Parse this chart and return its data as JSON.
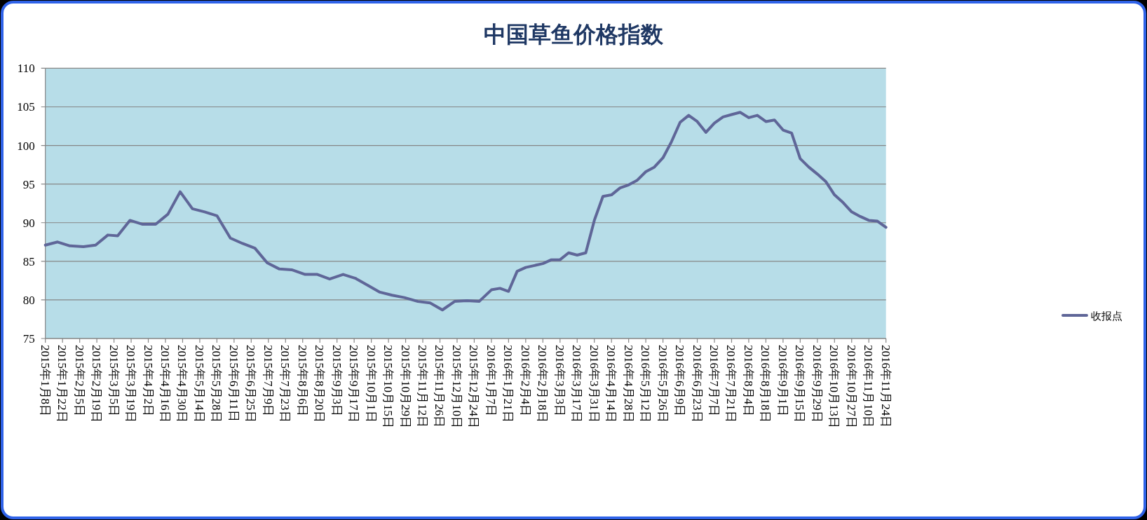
{
  "chart_data": {
    "type": "line",
    "title": "中国草鱼价格指数",
    "x": [
      "2015-01-08",
      "2015-01-18",
      "2015-01-28",
      "2015-02-08",
      "2015-02-18",
      "2015-02-28",
      "2015-03-08",
      "2015-03-18",
      "2015-03-28",
      "2015-04-08",
      "2015-04-18",
      "2015-04-28",
      "2015-05-08",
      "2015-05-18",
      "2015-05-28",
      "2015-06-08",
      "2015-06-18",
      "2015-06-28",
      "2015-07-08",
      "2015-07-18",
      "2015-07-28",
      "2015-08-08",
      "2015-08-18",
      "2015-08-28",
      "2015-09-08",
      "2015-09-18",
      "2015-09-28",
      "2015-10-08",
      "2015-10-18",
      "2015-10-28",
      "2015-11-08",
      "2015-11-18",
      "2015-11-28",
      "2015-12-08",
      "2015-12-18",
      "2015-12-28",
      "2016-01-07",
      "2016-01-14",
      "2016-01-21",
      "2016-01-28",
      "2016-02-04",
      "2016-02-18",
      "2016-02-25",
      "2016-03-03",
      "2016-03-10",
      "2016-03-17",
      "2016-03-24",
      "2016-03-31",
      "2016-04-07",
      "2016-04-14",
      "2016-04-21",
      "2016-04-28",
      "2016-05-05",
      "2016-05-12",
      "2016-05-19",
      "2016-05-26",
      "2016-06-02",
      "2016-06-09",
      "2016-06-16",
      "2016-06-23",
      "2016-06-30",
      "2016-07-07",
      "2016-07-14",
      "2016-07-21",
      "2016-07-28",
      "2016-08-04",
      "2016-08-11",
      "2016-08-18",
      "2016-08-25",
      "2016-09-01",
      "2016-09-08",
      "2016-09-15",
      "2016-09-22",
      "2016-09-29",
      "2016-10-06",
      "2016-10-13",
      "2016-10-20",
      "2016-10-27",
      "2016-11-03",
      "2016-11-10",
      "2016-11-17",
      "2016-11-24"
    ],
    "series": [
      {
        "name": "收报点",
        "color": "#5f6698",
        "values": [
          87.1,
          87.5,
          87.0,
          86.9,
          87.1,
          88.4,
          88.3,
          90.3,
          89.8,
          89.8,
          91.1,
          94.0,
          91.8,
          91.4,
          90.9,
          88.0,
          87.3,
          86.7,
          84.8,
          84.0,
          83.9,
          83.3,
          83.3,
          82.7,
          83.3,
          82.8,
          81.9,
          81.0,
          80.6,
          80.3,
          79.8,
          79.6,
          78.7,
          79.8,
          79.9,
          79.8,
          81.3,
          81.5,
          81.1,
          83.7,
          84.2,
          84.7,
          85.2,
          85.2,
          86.1,
          85.8,
          86.1,
          90.3,
          93.4,
          93.6,
          94.5,
          94.9,
          95.5,
          96.6,
          97.2,
          98.4,
          100.5,
          103.0,
          103.9,
          103.1,
          101.7,
          102.9,
          103.7,
          104.0,
          104.3,
          103.6,
          103.9,
          103.1,
          103.3,
          102.0,
          101.6,
          98.3,
          97.2,
          96.3,
          95.3,
          93.6,
          92.6,
          91.4,
          90.8,
          90.3,
          90.2,
          89.4
        ]
      }
    ],
    "xlim": [
      "2015-01-08",
      "2016-11-24"
    ],
    "xticks": [
      {
        "value": "2015-01-08",
        "label": "2015年1月8日"
      },
      {
        "value": "2015-01-22",
        "label": "2015年1月22日"
      },
      {
        "value": "2015-02-05",
        "label": "2015年2月5日"
      },
      {
        "value": "2015-02-19",
        "label": "2015年2月19日"
      },
      {
        "value": "2015-03-05",
        "label": "2015年3月5日"
      },
      {
        "value": "2015-03-19",
        "label": "2015年3月19日"
      },
      {
        "value": "2015-04-02",
        "label": "2015年4月2日"
      },
      {
        "value": "2015-04-16",
        "label": "2015年4月16日"
      },
      {
        "value": "2015-04-30",
        "label": "2015年4月30日"
      },
      {
        "value": "2015-05-14",
        "label": "2015年5月14日"
      },
      {
        "value": "2015-05-28",
        "label": "2015年5月28日"
      },
      {
        "value": "2015-06-11",
        "label": "2015年6月11日"
      },
      {
        "value": "2015-06-25",
        "label": "2015年6月25日"
      },
      {
        "value": "2015-07-09",
        "label": "2015年7月9日"
      },
      {
        "value": "2015-07-23",
        "label": "2015年7月23日"
      },
      {
        "value": "2015-08-06",
        "label": "2015年8月6日"
      },
      {
        "value": "2015-08-20",
        "label": "2015年8月20日"
      },
      {
        "value": "2015-09-03",
        "label": "2015年9月3日"
      },
      {
        "value": "2015-09-17",
        "label": "2015年9月17日"
      },
      {
        "value": "2015-10-01",
        "label": "2015年10月1日"
      },
      {
        "value": "2015-10-15",
        "label": "2015年10月15日"
      },
      {
        "value": "2015-10-29",
        "label": "2015年10月29日"
      },
      {
        "value": "2015-11-12",
        "label": "2015年11月12日"
      },
      {
        "value": "2015-11-26",
        "label": "2015年11月26日"
      },
      {
        "value": "2015-12-10",
        "label": "2015年12月10日"
      },
      {
        "value": "2015-12-24",
        "label": "2015年12月24日"
      },
      {
        "value": "2016-01-07",
        "label": "2016年1月7日"
      },
      {
        "value": "2016-01-21",
        "label": "2016年1月21日"
      },
      {
        "value": "2016-02-04",
        "label": "2016年2月4日"
      },
      {
        "value": "2016-02-18",
        "label": "2016年2月18日"
      },
      {
        "value": "2016-03-03",
        "label": "2016年3月3日"
      },
      {
        "value": "2016-03-17",
        "label": "2016年3月17日"
      },
      {
        "value": "2016-03-31",
        "label": "2016年3月31日"
      },
      {
        "value": "2016-04-14",
        "label": "2016年4月14日"
      },
      {
        "value": "2016-04-28",
        "label": "2016年4月28日"
      },
      {
        "value": "2016-05-12",
        "label": "2016年5月12日"
      },
      {
        "value": "2016-05-26",
        "label": "2016年5月26日"
      },
      {
        "value": "2016-06-09",
        "label": "2016年6月9日"
      },
      {
        "value": "2016-06-23",
        "label": "2016年6月23日"
      },
      {
        "value": "2016-07-07",
        "label": "2016年7月7日"
      },
      {
        "value": "2016-07-21",
        "label": "2016年7月21日"
      },
      {
        "value": "2016-08-04",
        "label": "2016年8月4日"
      },
      {
        "value": "2016-08-18",
        "label": "2016年8月18日"
      },
      {
        "value": "2016-09-01",
        "label": "2016年9月1日"
      },
      {
        "value": "2016-09-15",
        "label": "2016年9月15日"
      },
      {
        "value": "2016-09-29",
        "label": "2016年9月29日"
      },
      {
        "value": "2016-10-13",
        "label": "2016年10月13日"
      },
      {
        "value": "2016-10-27",
        "label": "2016年10月27日"
      },
      {
        "value": "2016-11-10",
        "label": "2016年11月10日"
      },
      {
        "value": "2016-11-24",
        "label": "2016年11月24日"
      }
    ],
    "ylim": [
      75,
      110
    ],
    "yticks": [
      75,
      80,
      85,
      90,
      95,
      100,
      105,
      110
    ],
    "grid": "y",
    "legend": "right",
    "line_style": "solid"
  }
}
